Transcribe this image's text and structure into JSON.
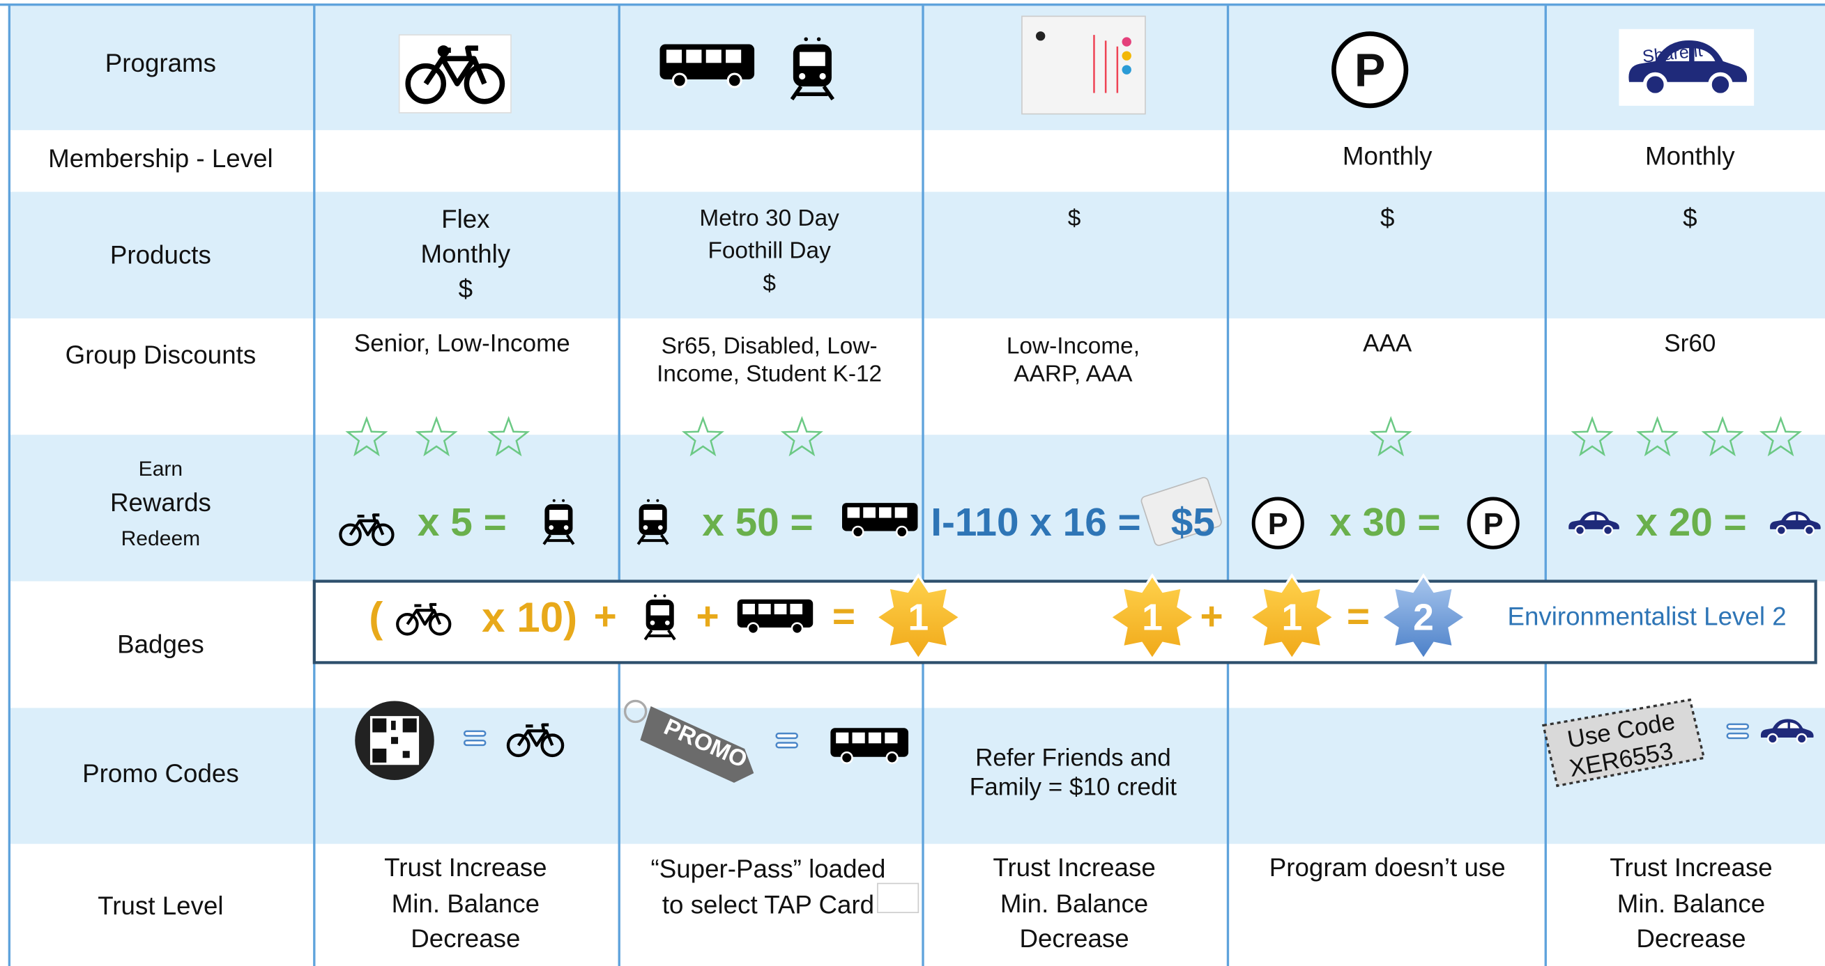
{
  "programs": {
    "label": "Programs",
    "parking_symbol": "P",
    "carshare_logo": "Share it"
  },
  "membership": {
    "label": "Membership - Level",
    "parking": "Monthly",
    "carshare": "Monthly"
  },
  "products": {
    "label": "Products",
    "bike": [
      "Flex",
      "Monthly",
      "$"
    ],
    "transit": [
      "Metro 30 Day",
      "Foothill Day",
      "$"
    ],
    "expresslanes": "$",
    "parking": "$",
    "carshare": "$"
  },
  "group_discounts": {
    "label": "Group Discounts",
    "bike": "Senior, Low-Income",
    "transit": "Sr65, Disabled, Low-Income, Student K-12",
    "expresslanes": "Low-Income, AARP, AAA",
    "parking": "AAA",
    "carshare": "Sr60"
  },
  "rewards": {
    "label_top": "Earn",
    "label": "Rewards",
    "label_bottom": "Redeem",
    "bike": "x 5 =",
    "transit": "x 50 =",
    "expresslanes": "I-110 x 16 =",
    "expresslanes_reward": "$5",
    "parking": "x 30 =",
    "carshare": "x 20 ="
  },
  "badges": {
    "label": "Badges",
    "open": "(",
    "multiplier": "x 10)",
    "plus": "+",
    "equals": "=",
    "badge_one": "1",
    "badge_two": "2",
    "level": "Environmentalist Level 2"
  },
  "promo_codes": {
    "label": "Promo Codes",
    "promo_tag": "PROMO",
    "expresslanes": "Refer  Friends and Family = $10 credit",
    "carshare_code": [
      "Use Code",
      "XER6553"
    ]
  },
  "trust_level": {
    "label": "Trust Level",
    "bike": [
      "Trust Increase",
      "Min. Balance",
      "Decrease"
    ],
    "transit": [
      "“Super-Pass” loaded",
      "to select TAP Card"
    ],
    "expresslanes": [
      "Trust Increase",
      "Min. Balance",
      "Decrease"
    ],
    "parking": "Program doesn’t use",
    "carshare": [
      "Trust Increase",
      "Min. Balance",
      "Decrease"
    ]
  }
}
